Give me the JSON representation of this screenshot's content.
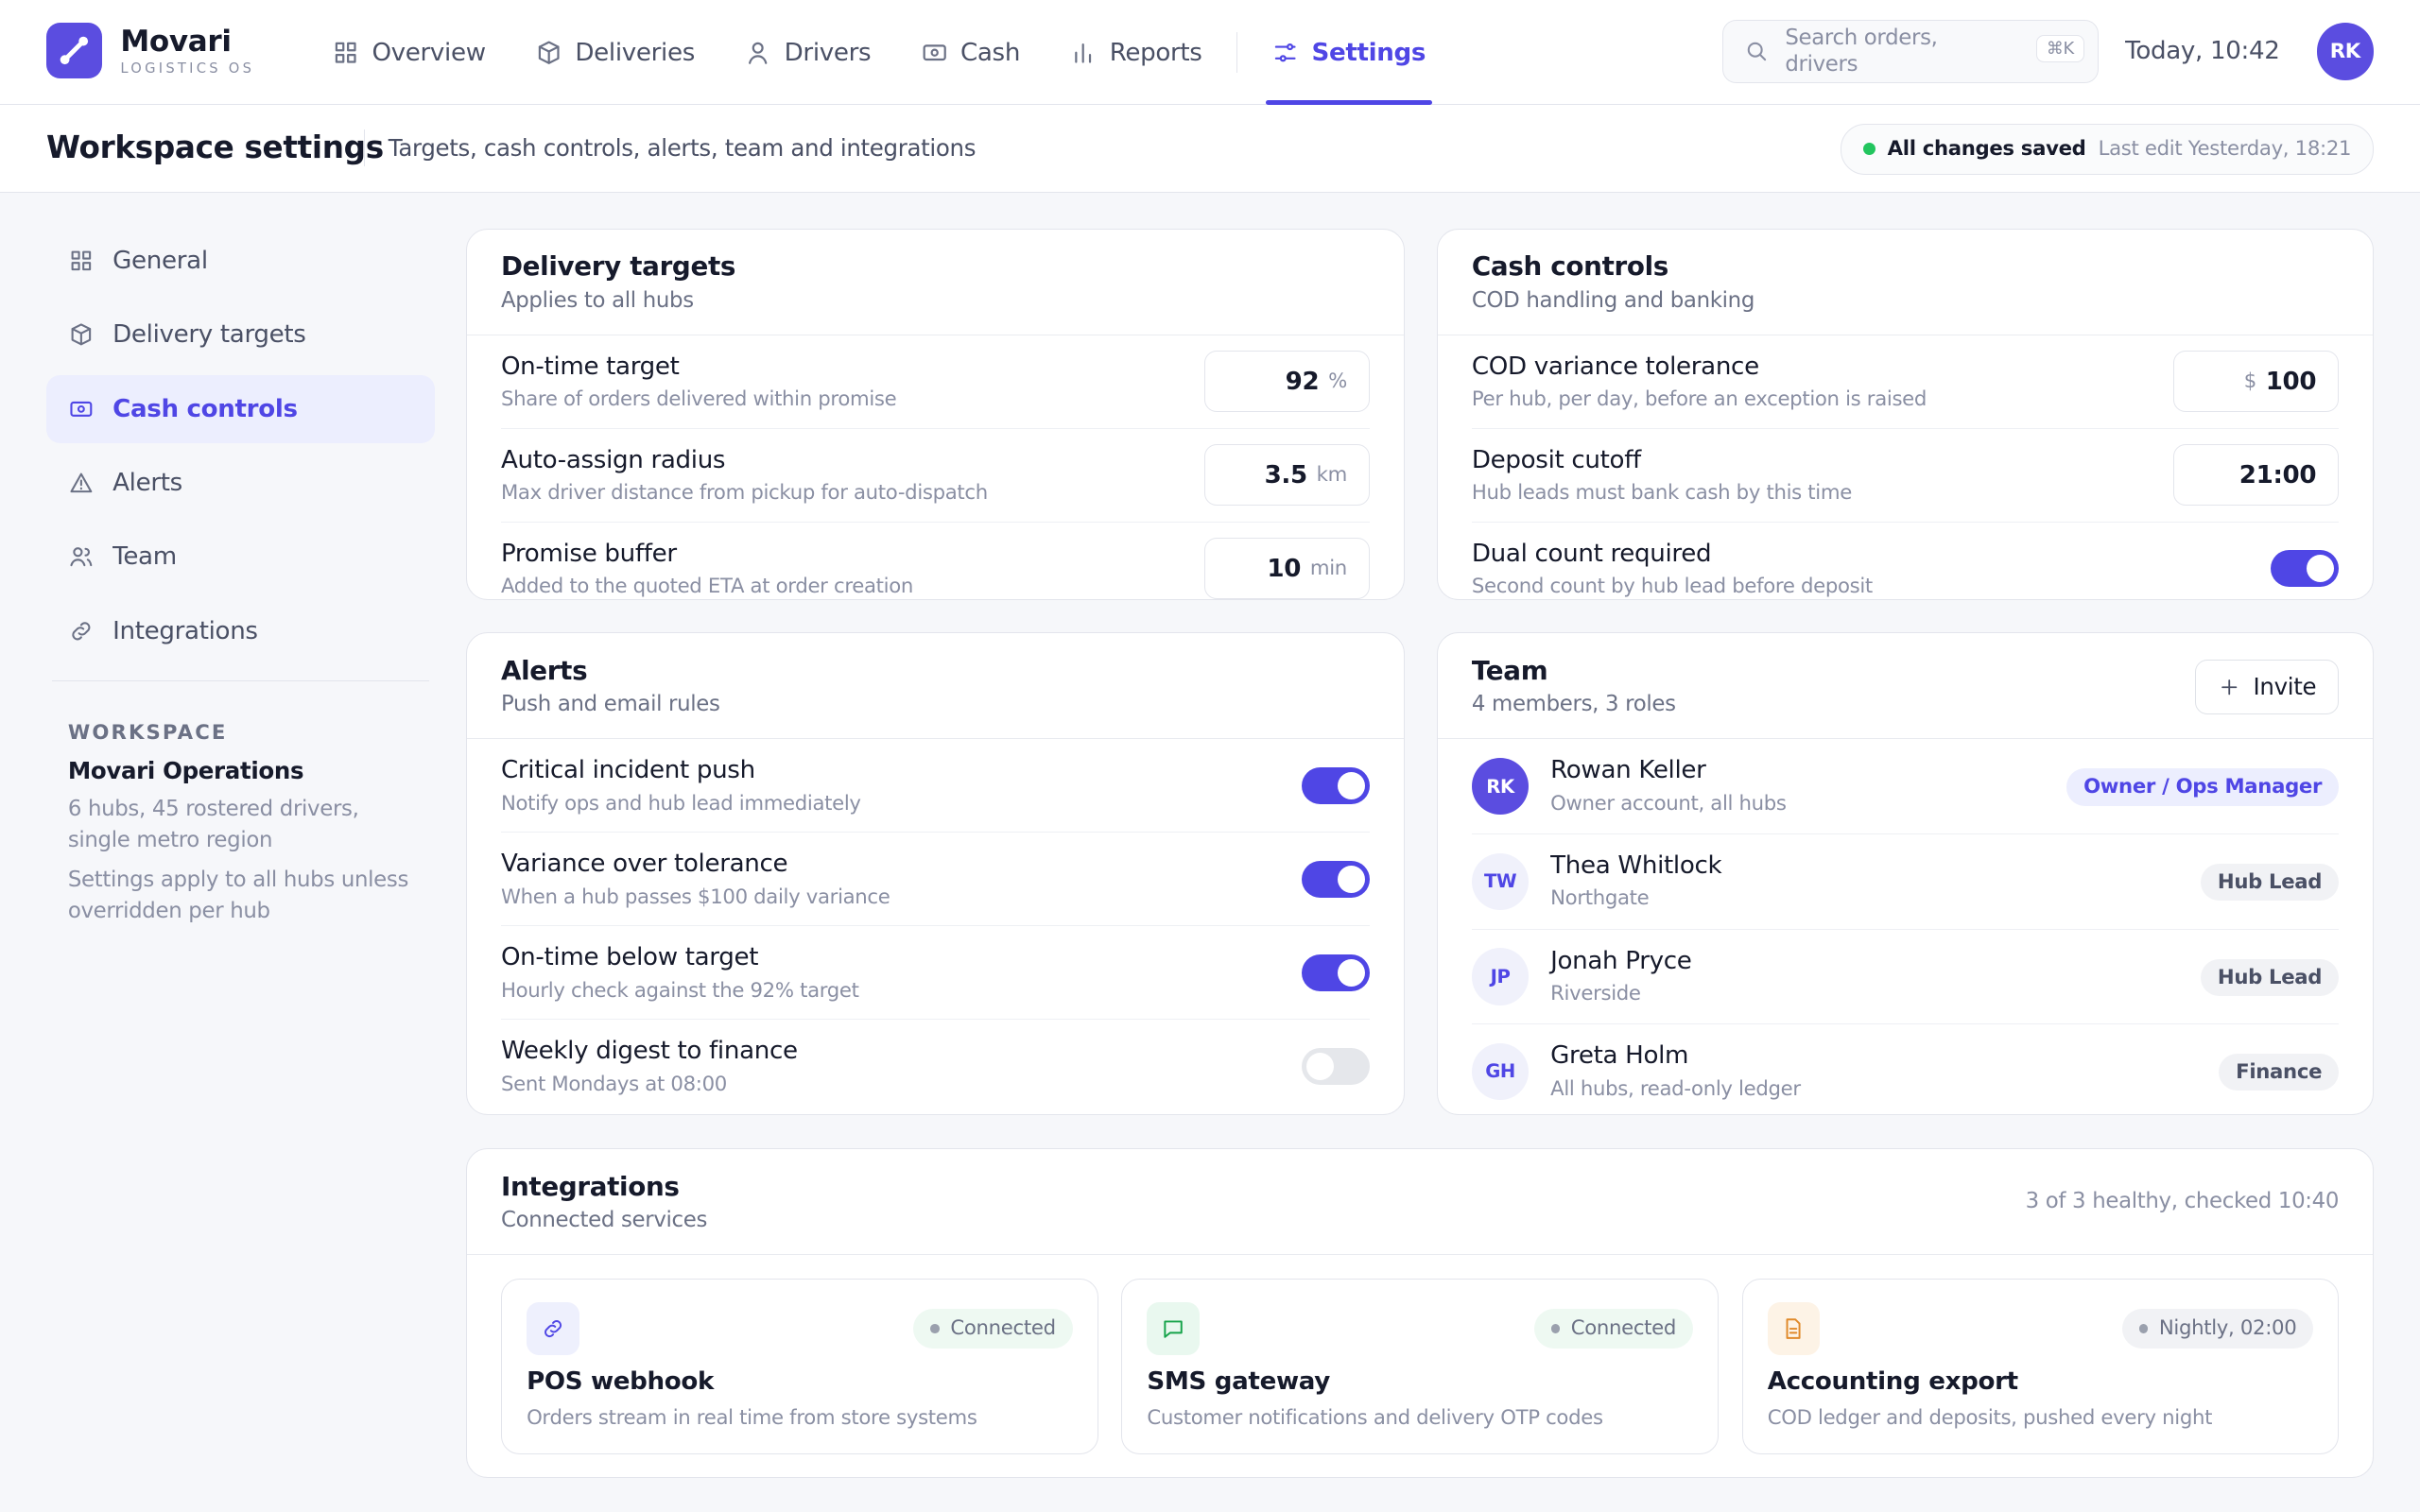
{
  "nav": {
    "brand": "Movari",
    "tagline": "LOGISTICS OS",
    "items": [
      "Overview",
      "Deliveries",
      "Drivers",
      "Cash",
      "Reports",
      "Settings"
    ],
    "active": "Settings",
    "search": "Search orders, drivers",
    "shortcut": "⌘K",
    "time": "Today, 10:42",
    "avatar": "RK"
  },
  "header": {
    "title": "Workspace settings",
    "subtitle": "Targets, cash controls, alerts, team and integrations",
    "status": "All changes saved",
    "last_edit": "Last edit Yesterday, 18:21"
  },
  "sidebar": {
    "items": [
      "General",
      "Delivery targets",
      "Cash controls",
      "Alerts",
      "Team",
      "Integrations"
    ],
    "active": "Cash controls",
    "workspace_label": "WORKSPACE",
    "workspace_name": "Movari Operations",
    "notes": [
      "6 hubs, 45 rostered drivers, single metro region",
      "Settings apply to all hubs unless overridden per hub"
    ]
  },
  "delivery_targets": {
    "title": "Delivery targets",
    "subtitle": "Applies to all hubs",
    "rows": [
      {
        "label": "On-time target",
        "hint": "Share of orders delivered within promise",
        "value": "92",
        "unit": "%"
      },
      {
        "label": "Auto-assign radius",
        "hint": "Max driver distance from pickup for auto-dispatch",
        "value": "3.5",
        "unit": "km"
      },
      {
        "label": "Promise buffer",
        "hint": "Added to the quoted ETA at order creation",
        "value": "10",
        "unit": "min"
      }
    ]
  },
  "cash_controls": {
    "title": "Cash controls",
    "subtitle": "COD handling and banking",
    "rows": [
      {
        "label": "COD variance tolerance",
        "hint": "Per hub, per day, before an exception is raised",
        "prefix": "$",
        "value": "100"
      },
      {
        "label": "Deposit cutoff",
        "hint": "Hub leads must bank cash by this time",
        "value": "21:00"
      },
      {
        "label": "Dual count required",
        "hint": "Second count by hub lead before deposit",
        "toggle": true
      }
    ]
  },
  "alerts": {
    "title": "Alerts",
    "subtitle": "Push and email rules",
    "rows": [
      {
        "label": "Critical incident push",
        "hint": "Notify ops and hub lead immediately",
        "toggle": true
      },
      {
        "label": "Variance over tolerance",
        "hint": "When a hub passes $100 daily variance",
        "toggle": true
      },
      {
        "label": "On-time below target",
        "hint": "Hourly check against the 92% target",
        "toggle": true
      },
      {
        "label": "Weekly digest to finance",
        "hint": "Sent Mondays at 08:00",
        "toggle": false
      }
    ]
  },
  "team": {
    "title": "Team",
    "subtitle": "4 members, 3 roles",
    "button": "Invite",
    "members": [
      {
        "initials": "RK",
        "name": "Rowan Keller",
        "detail": "Owner account, all hubs",
        "role": "Owner / Ops Manager"
      },
      {
        "initials": "TW",
        "name": "Thea Whitlock",
        "detail": "Northgate",
        "role": "Hub Lead"
      },
      {
        "initials": "JP",
        "name": "Jonah Pryce",
        "detail": "Riverside",
        "role": "Hub Lead"
      },
      {
        "initials": "GH",
        "name": "Greta Holm",
        "detail": "All hubs, read-only ledger",
        "role": "Finance"
      }
    ]
  },
  "integrations": {
    "title": "Integrations",
    "subtitle": "Connected services",
    "status": "3 of 3 healthy, checked 10:40",
    "cards": [
      {
        "name": "POS webhook",
        "desc": "Orders stream in real time from store systems",
        "status": "Connected"
      },
      {
        "name": "SMS gateway",
        "desc": "Customer notifications and delivery OTP codes",
        "status": "Connected"
      },
      {
        "name": "Accounting export",
        "desc": "COD ledger and deposits, pushed every night",
        "status": "Nightly, 02:00"
      }
    ]
  }
}
